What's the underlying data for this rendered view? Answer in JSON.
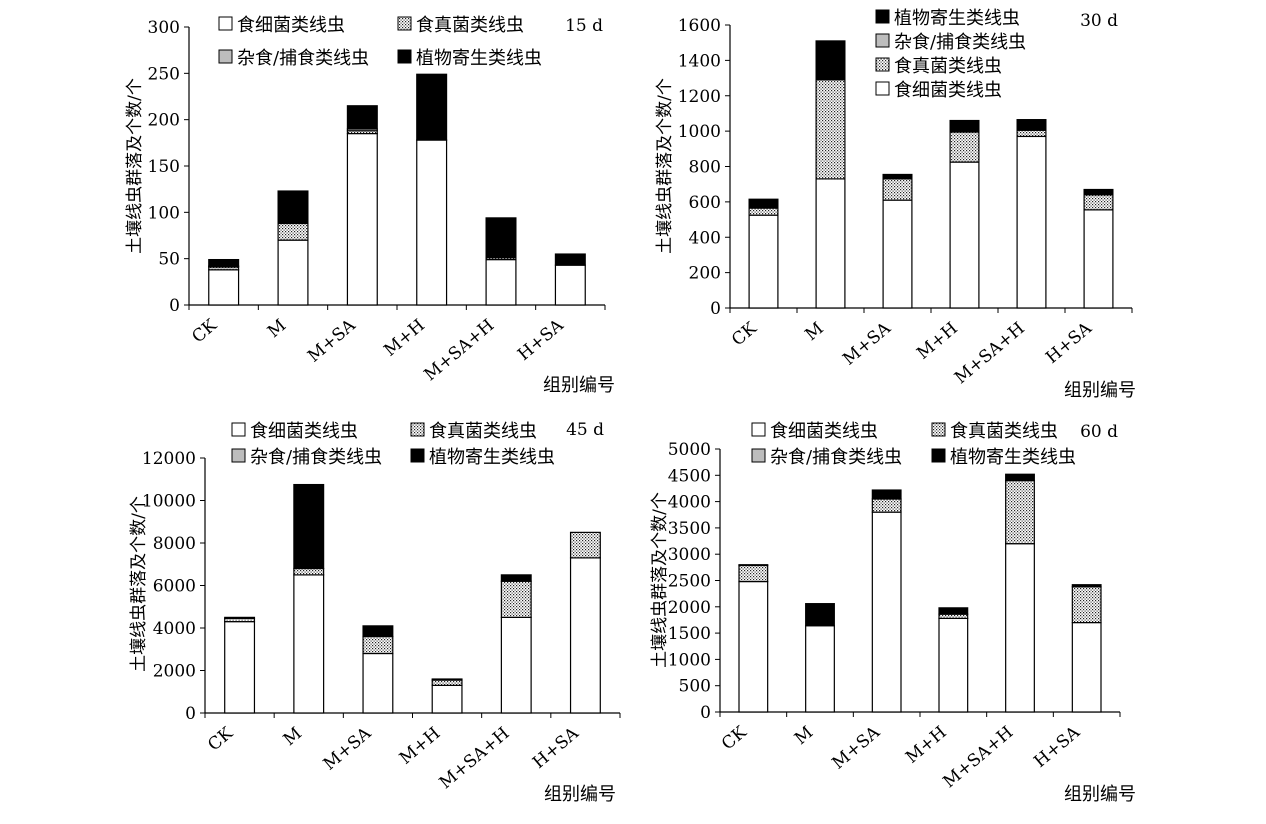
{
  "figure": {
    "fills": {
      "食细菌类线虫": "#ffffff",
      "食真菌类线虫": "url(#dots)",
      "杂食/捕食类线虫": "#bdbdbd",
      "植物寄生类线虫": "#000000"
    }
  },
  "chart_data": [
    {
      "type": "bar",
      "stacked": true,
      "panel_label": "15 d",
      "ylabel": "土壤线虫群落及个数/个",
      "xlabel": "组别编号",
      "categories": [
        "CK",
        "M",
        "M+SA",
        "M+H",
        "M+SA+H",
        "H+SA"
      ],
      "ylim": [
        0,
        300
      ],
      "yticks": [
        0,
        50,
        100,
        150,
        200,
        250,
        300
      ],
      "legend": [
        "食细菌类线虫",
        "食真菌类线虫",
        "杂食/捕食类线虫",
        "植物寄生类线虫"
      ],
      "series": [
        {
          "name": "食细菌类线虫",
          "values": [
            38,
            70,
            185,
            178,
            49,
            43
          ]
        },
        {
          "name": "食真菌类线虫",
          "values": [
            3,
            18,
            3,
            0,
            2,
            0
          ]
        },
        {
          "name": "杂食/捕食类线虫",
          "values": [
            1,
            0,
            2,
            0,
            0,
            0
          ]
        },
        {
          "name": "植物寄生类线虫",
          "values": [
            7,
            35,
            25,
            71,
            43,
            12
          ]
        }
      ]
    },
    {
      "type": "bar",
      "stacked": true,
      "panel_label": "30 d",
      "ylabel": "土壤线虫群落及个数/个",
      "xlabel": "组别编号",
      "categories": [
        "CK",
        "M",
        "M+SA",
        "M+H",
        "M+SA+H",
        "H+SA"
      ],
      "ylim": [
        0,
        1600
      ],
      "yticks": [
        0,
        200,
        400,
        600,
        800,
        1000,
        1200,
        1400,
        1600
      ],
      "legend": [
        "植物寄生类线虫",
        "杂食/捕食类线虫",
        "食真菌类线虫",
        "食细菌类线虫"
      ],
      "series": [
        {
          "name": "食细菌类线虫",
          "values": [
            525,
            730,
            610,
            825,
            970,
            555
          ]
        },
        {
          "name": "食真菌类线虫",
          "values": [
            40,
            560,
            120,
            170,
            35,
            85
          ]
        },
        {
          "name": "杂食/捕食类线虫",
          "values": [
            0,
            0,
            0,
            0,
            0,
            0
          ]
        },
        {
          "name": "植物寄生类线虫",
          "values": [
            50,
            220,
            25,
            65,
            60,
            30
          ]
        }
      ]
    },
    {
      "type": "bar",
      "stacked": true,
      "panel_label": "45 d",
      "ylabel": "土壤线虫群落及个数/个",
      "xlabel": "组别编号",
      "categories": [
        "CK",
        "M",
        "M+SA",
        "M+H",
        "M+SA+H",
        "H+SA"
      ],
      "ylim": [
        0,
        12000
      ],
      "yticks": [
        0,
        2000,
        4000,
        6000,
        8000,
        10000,
        12000
      ],
      "legend": [
        "食细菌类线虫",
        "食真菌类线虫",
        "杂食/捕食类线虫",
        "植物寄生类线虫"
      ],
      "series": [
        {
          "name": "食细菌类线虫",
          "values": [
            4300,
            6500,
            2800,
            1300,
            4500,
            7300
          ]
        },
        {
          "name": "食真菌类线虫",
          "values": [
            150,
            300,
            800,
            250,
            1700,
            1200
          ]
        },
        {
          "name": "杂食/捕食类线虫",
          "values": [
            0,
            0,
            0,
            0,
            0,
            0
          ]
        },
        {
          "name": "植物寄生类线虫",
          "values": [
            50,
            3950,
            500,
            50,
            300,
            0
          ]
        }
      ]
    },
    {
      "type": "bar",
      "stacked": true,
      "panel_label": "60 d",
      "ylabel": "土壤线虫群落及个数/个",
      "xlabel": "组别编号",
      "categories": [
        "CK",
        "M",
        "M+SA",
        "M+H",
        "M+SA+H",
        "H+SA"
      ],
      "ylim": [
        0,
        5000
      ],
      "yticks": [
        0,
        500,
        1000,
        1500,
        2000,
        2500,
        3000,
        3500,
        4000,
        4500,
        5000
      ],
      "legend": [
        "食细菌类线虫",
        "食真菌类线虫",
        "杂食/捕食类线虫",
        "植物寄生类线虫"
      ],
      "series": [
        {
          "name": "食细菌类线虫",
          "values": [
            2480,
            1640,
            3800,
            1780,
            3200,
            1700
          ]
        },
        {
          "name": "食真菌类线虫",
          "values": [
            310,
            0,
            250,
            80,
            1200,
            680
          ]
        },
        {
          "name": "杂食/捕食类线虫",
          "values": [
            0,
            0,
            0,
            0,
            0,
            0
          ]
        },
        {
          "name": "植物寄生类线虫",
          "values": [
            10,
            420,
            170,
            120,
            120,
            40
          ]
        }
      ]
    }
  ]
}
